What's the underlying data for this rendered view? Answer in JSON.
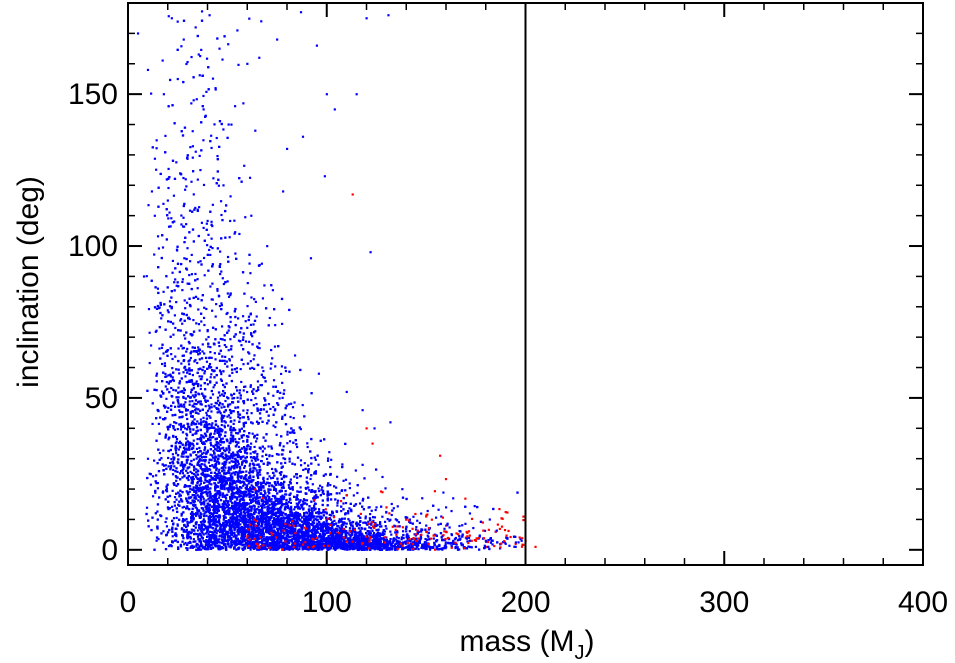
{
  "chart_data": {
    "type": "scatter",
    "xlabel": "mass (M",
    "xlabel_sub": "J",
    "xlabel_close": ")",
    "ylabel": "inclination (deg)",
    "xlim": [
      0,
      400
    ],
    "ylim": [
      -5,
      180
    ],
    "x_ticks": [
      0,
      100,
      200,
      300,
      400
    ],
    "y_ticks": [
      0,
      50,
      100,
      150
    ],
    "x_tick_labels": [
      "0",
      "100",
      "200",
      "300",
      "400"
    ],
    "y_tick_labels": [
      "0",
      "50",
      "100",
      "150"
    ],
    "vertical_line_x": 200,
    "grid": false,
    "colors": {
      "primary_points": "#0000ff",
      "secondary_points": "#ff0000",
      "axes": "#000000"
    },
    "series": [
      {
        "color": "#0000ff",
        "points": [
          [
            22,
            175
          ],
          [
            28,
            168
          ],
          [
            34,
            172
          ],
          [
            41,
            176
          ],
          [
            46,
            165
          ],
          [
            55,
            171
          ],
          [
            60,
            160
          ],
          [
            67,
            174
          ],
          [
            75,
            168
          ],
          [
            87,
            177
          ],
          [
            95,
            166
          ],
          [
            120,
            175
          ],
          [
            131,
            176
          ],
          [
            66,
            162
          ],
          [
            5,
            170
          ],
          [
            10,
            158
          ],
          [
            18,
            150
          ],
          [
            25,
            155
          ],
          [
            33,
            148
          ],
          [
            38,
            145
          ],
          [
            44,
            152
          ],
          [
            52,
            140
          ],
          [
            58,
            147
          ],
          [
            64,
            138
          ],
          [
            80,
            132
          ],
          [
            88,
            136
          ],
          [
            100,
            150
          ],
          [
            104,
            145
          ],
          [
            115,
            150
          ],
          [
            12,
            118
          ],
          [
            20,
            115
          ],
          [
            29,
            122
          ],
          [
            35,
            112
          ],
          [
            42,
            108
          ],
          [
            48,
            120
          ],
          [
            56,
            104
          ],
          [
            62,
            110
          ],
          [
            70,
            100
          ],
          [
            78,
            118
          ],
          [
            92,
            96
          ],
          [
            122,
            98
          ],
          [
            99,
            123
          ],
          [
            8,
            90
          ],
          [
            15,
            86
          ],
          [
            22,
            80
          ],
          [
            31,
            76
          ],
          [
            40,
            72
          ],
          [
            50,
            78
          ],
          [
            58,
            70
          ],
          [
            66,
            68
          ],
          [
            74,
            74
          ],
          [
            84,
            64
          ],
          [
            96,
            58
          ],
          [
            110,
            52
          ],
          [
            118,
            46
          ],
          [
            124,
            40
          ],
          [
            132,
            42
          ],
          [
            10,
            30
          ],
          [
            15,
            22
          ],
          [
            20,
            14
          ],
          [
            25,
            8
          ],
          [
            30,
            4
          ],
          [
            35,
            18
          ],
          [
            40,
            26
          ],
          [
            45,
            34
          ],
          [
            50,
            12
          ],
          [
            55,
            6
          ],
          [
            60,
            20
          ],
          [
            65,
            28
          ],
          [
            70,
            16
          ],
          [
            75,
            10
          ],
          [
            80,
            3
          ],
          [
            85,
            22
          ],
          [
            90,
            15
          ],
          [
            95,
            8
          ],
          [
            100,
            12
          ],
          [
            105,
            5
          ],
          [
            110,
            18
          ],
          [
            115,
            9
          ],
          [
            120,
            4
          ],
          [
            125,
            14
          ],
          [
            130,
            7
          ],
          [
            135,
            2
          ],
          [
            140,
            10
          ],
          [
            145,
            5
          ],
          [
            150,
            8
          ],
          [
            155,
            3
          ],
          [
            160,
            6
          ],
          [
            165,
            2
          ],
          [
            170,
            4
          ],
          [
            175,
            1
          ],
          [
            180,
            3
          ],
          [
            185,
            6
          ],
          [
            190,
            2
          ],
          [
            195,
            1
          ],
          [
            198,
            3
          ],
          [
            182,
            10
          ],
          [
            172,
            12
          ],
          [
            160,
            14
          ],
          [
            148,
            17
          ],
          [
            138,
            20
          ],
          [
            128,
            24
          ],
          [
            118,
            28
          ]
        ]
      },
      {
        "color": "#ff0000",
        "points": [
          [
            113,
            117
          ],
          [
            123,
            35
          ],
          [
            120,
            40
          ],
          [
            157,
            31
          ],
          [
            110,
            18
          ],
          [
            130,
            14
          ],
          [
            140,
            10
          ],
          [
            150,
            6
          ],
          [
            160,
            8
          ],
          [
            170,
            4
          ],
          [
            175,
            3
          ],
          [
            185,
            6
          ],
          [
            195,
            2
          ],
          [
            205,
            1
          ],
          [
            100,
            10
          ],
          [
            90,
            6
          ],
          [
            80,
            3
          ],
          [
            70,
            8
          ],
          [
            60,
            4
          ],
          [
            135,
            5
          ],
          [
            145,
            3
          ],
          [
            125,
            8
          ],
          [
            115,
            4
          ],
          [
            105,
            6
          ],
          [
            165,
            2
          ],
          [
            180,
            1
          ],
          [
            150,
            11
          ],
          [
            128,
            19
          ],
          [
            200,
            3
          ]
        ]
      }
    ]
  }
}
